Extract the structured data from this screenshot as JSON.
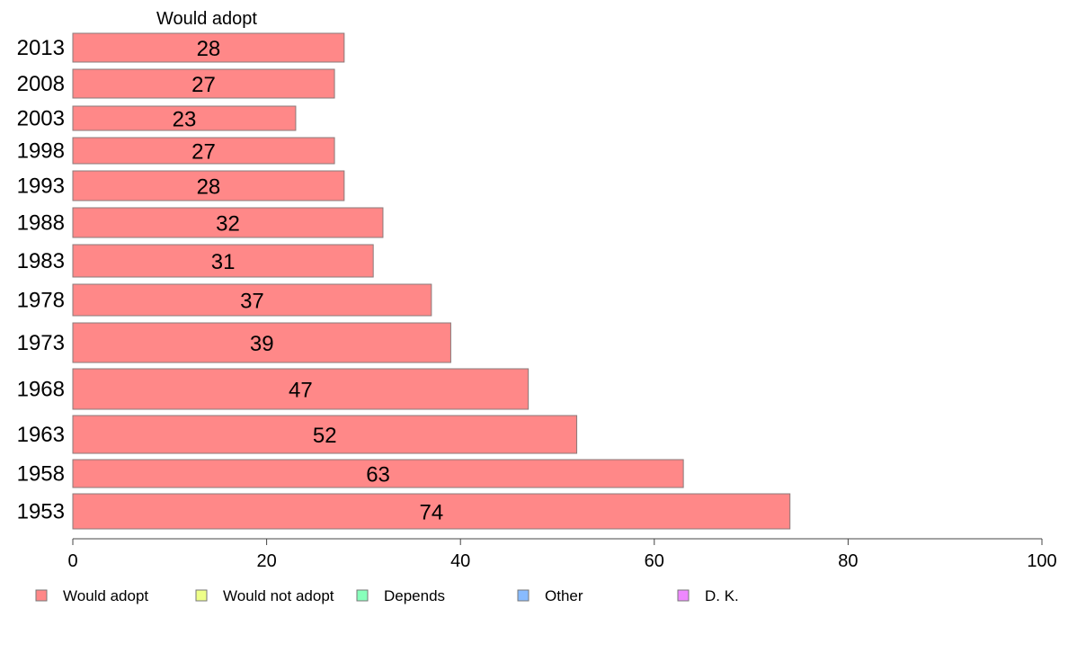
{
  "chart_data": {
    "type": "bar",
    "orientation": "horizontal",
    "column_header": "Would adopt",
    "categories": [
      "2013",
      "2008",
      "2003",
      "1998",
      "1993",
      "1988",
      "1983",
      "1978",
      "1973",
      "1968",
      "1963",
      "1958",
      "1953"
    ],
    "series": [
      {
        "name": "Would adopt",
        "values": [
          28,
          27,
          23,
          27,
          28,
          32,
          31,
          37,
          39,
          47,
          52,
          63,
          74
        ],
        "color": "#ff8888"
      }
    ],
    "xlim": [
      0,
      100
    ],
    "xticks": [
      0,
      20,
      40,
      60,
      80,
      100
    ],
    "legend": [
      {
        "label": "Would adopt",
        "color": "#ff8888"
      },
      {
        "label": "Would not adopt",
        "color": "#eeff88"
      },
      {
        "label": "Depends",
        "color": "#88ffbb"
      },
      {
        "label": "Other",
        "color": "#88bbff"
      },
      {
        "label": "D. K.",
        "color": "#ee88ff"
      }
    ],
    "legend_position": "bottom",
    "grid": false
  }
}
